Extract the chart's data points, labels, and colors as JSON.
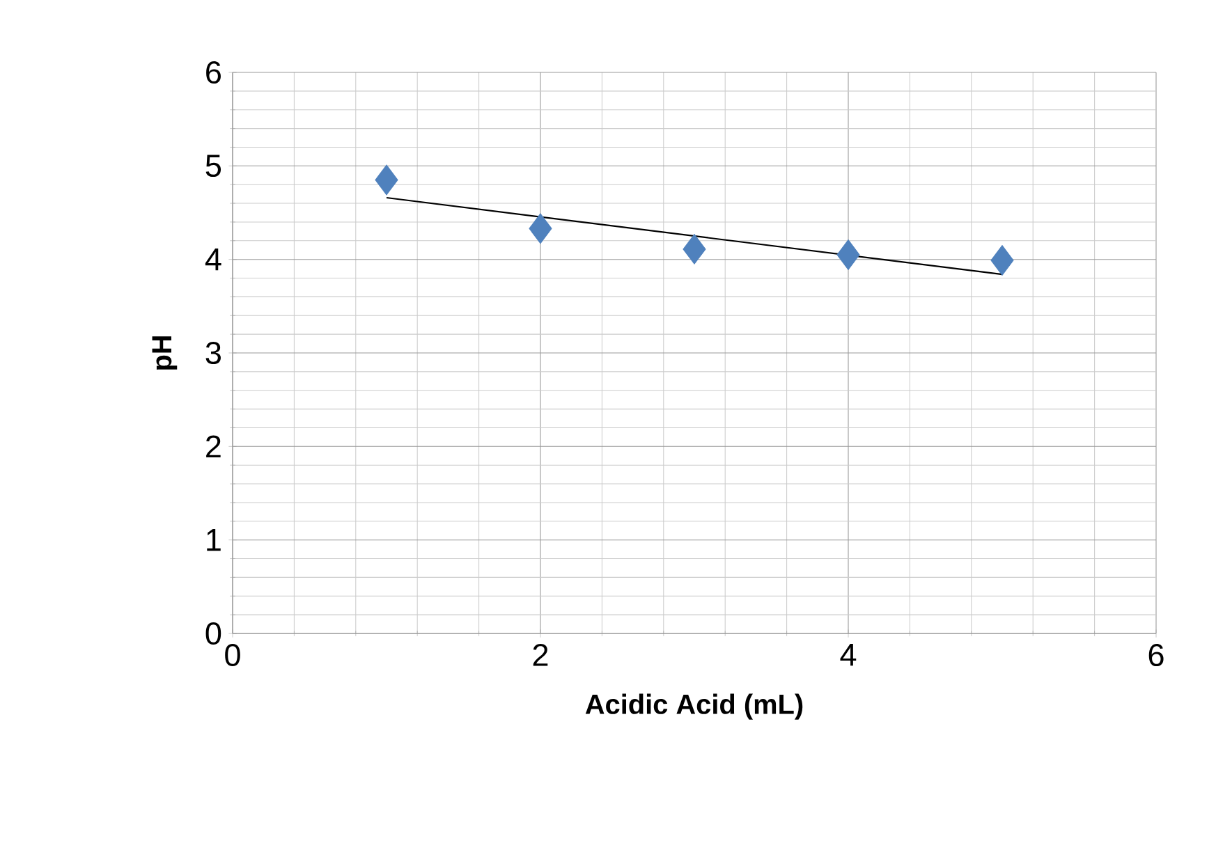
{
  "chart_data": {
    "type": "scatter",
    "xlabel": "Acidic Acid (mL)",
    "ylabel": "pH",
    "xlim": [
      0,
      6
    ],
    "ylim": [
      0,
      6
    ],
    "xticks": [
      0,
      2,
      4,
      6
    ],
    "yticks": [
      0,
      1,
      2,
      3,
      4,
      5,
      6
    ],
    "grid": true,
    "series": [
      {
        "marker": "diamond",
        "color": "#4f81bd",
        "x": [
          1,
          2,
          3,
          4,
          5
        ],
        "values": [
          4.85,
          4.33,
          4.11,
          4.05,
          3.99
        ]
      },
      {
        "type": "line",
        "marker": "none",
        "line_style": "solid",
        "color": "#000000",
        "x": [
          1,
          5
        ],
        "values": [
          4.66,
          3.84
        ]
      }
    ]
  }
}
